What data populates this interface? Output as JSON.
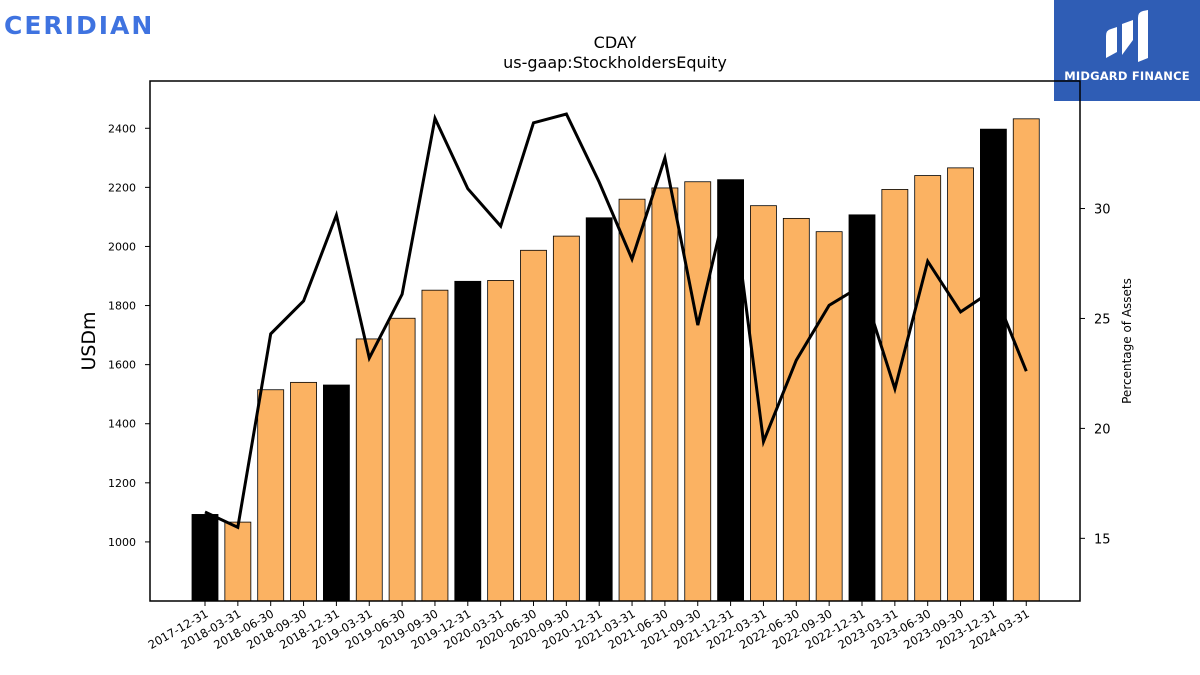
{
  "brand": {
    "name": "CERIDIAN"
  },
  "logo": {
    "name": "MIDGARD FINANCE"
  },
  "chart_data": {
    "type": "bar",
    "title": "CDAY",
    "subtitle": "us-gaap:StockholdersEquity",
    "ylabel": "USDm",
    "y2label": "Percentage of Assets",
    "ylim": [
      800,
      2560
    ],
    "y2lim": [
      12.15,
      35.8
    ],
    "yticks": [
      1000,
      1200,
      1400,
      1600,
      1800,
      2000,
      2200,
      2400
    ],
    "y2ticks": [
      15,
      20,
      25,
      30
    ],
    "grid": false,
    "categories": [
      "2017-12-31",
      "2018-03-31",
      "2018-06-30",
      "2018-09-30",
      "2018-12-31",
      "2019-03-31",
      "2019-06-30",
      "2019-09-30",
      "2019-12-31",
      "2020-03-31",
      "2020-06-30",
      "2020-09-30",
      "2020-12-31",
      "2021-03-31",
      "2021-06-30",
      "2021-09-30",
      "2021-12-31",
      "2022-03-31",
      "2022-06-30",
      "2022-09-30",
      "2022-12-31",
      "2023-03-31",
      "2023-06-30",
      "2023-09-30",
      "2023-12-31",
      "2024-03-31"
    ],
    "series": [
      {
        "axis": "left",
        "kind": "bar",
        "values": [
          1093,
          1067,
          1515,
          1540,
          1531,
          1687,
          1757,
          1852,
          1882,
          1885,
          1987,
          2035,
          2097,
          2160,
          2198,
          2219,
          2226,
          2138,
          2095,
          2050,
          2107,
          2193,
          2240,
          2266,
          2397,
          2432
        ],
        "year_end": [
          true,
          false,
          false,
          false,
          true,
          false,
          false,
          false,
          true,
          false,
          false,
          false,
          true,
          false,
          false,
          false,
          true,
          false,
          false,
          false,
          true,
          false,
          false,
          false,
          true,
          false
        ]
      },
      {
        "axis": "right",
        "kind": "line",
        "values": [
          16.2,
          15.5,
          24.3,
          25.8,
          29.7,
          23.2,
          26.1,
          34.1,
          30.9,
          29.2,
          33.9,
          34.3,
          31.2,
          27.7,
          32.3,
          24.7,
          31.0,
          19.4,
          23.1,
          25.6,
          26.5,
          21.8,
          27.6,
          25.3,
          26.3,
          22.6
        ]
      }
    ],
    "colors": {
      "bar_regular": "#fbb262",
      "bar_year_end": "#000000",
      "line": "#000000",
      "brand": "#3f73e0",
      "logo_bg": "#2f5db5"
    }
  }
}
